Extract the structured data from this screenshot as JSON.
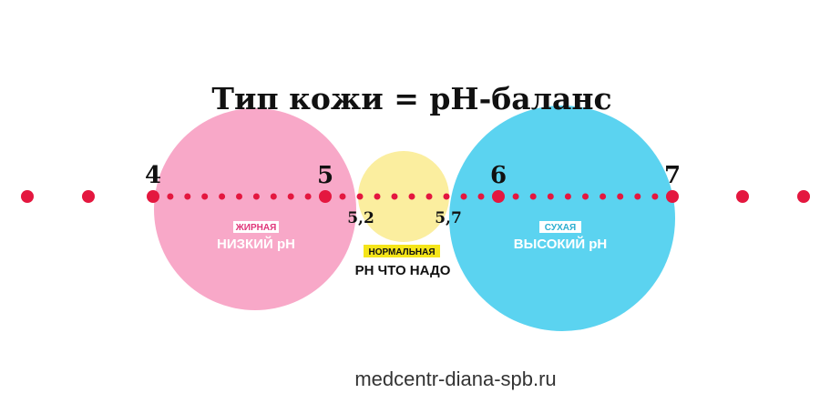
{
  "title": "Тип кожи = pH-баланс",
  "scale": {
    "ticks": [
      "4",
      "5",
      "6",
      "7"
    ],
    "normal_bounds": [
      "5,2",
      "5,7"
    ]
  },
  "zones": {
    "oily": {
      "tag": "ЖИРНАЯ",
      "label": "НИЗКИЙ pH",
      "color": "#f8a8c8"
    },
    "normal": {
      "tag": "НОРМАЛЬНАЯ",
      "label": "PH ЧТО НАДО",
      "color": "#fbee9f"
    },
    "dry": {
      "tag": "СУХАЯ",
      "label": "ВЫСОКИЙ pH",
      "color": "#5bd3f0"
    }
  },
  "colors": {
    "dots": "#e4173f",
    "tag_highlight": "#f5e51a"
  },
  "footer": "medcentr-diana-spb.ru"
}
